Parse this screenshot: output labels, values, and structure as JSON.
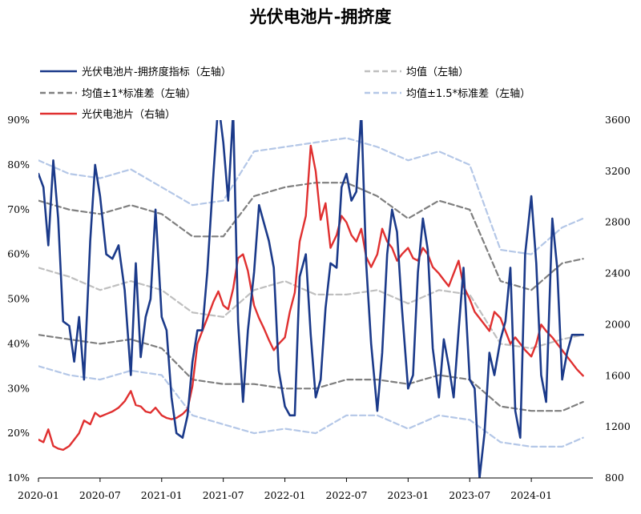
{
  "chart_data": {
    "type": "line",
    "title": "光伏电池片-拥挤度",
    "left_axis": {
      "ylim": [
        10,
        90
      ],
      "ticks": [
        10,
        20,
        30,
        40,
        50,
        60,
        70,
        80,
        90
      ],
      "tick_labels": [
        "10%",
        "20%",
        "30%",
        "40%",
        "50%",
        "60%",
        "70%",
        "80%",
        "90%"
      ]
    },
    "right_axis": {
      "ylim": [
        800,
        3600
      ],
      "ticks": [
        800,
        1200,
        1600,
        2000,
        2400,
        2800,
        3200,
        3600
      ],
      "tick_labels": [
        "800",
        "1200",
        "1600",
        "2000",
        "2400",
        "2800",
        "3200",
        "3600"
      ]
    },
    "x_axis": {
      "range": [
        "2020-01",
        "2024-06"
      ],
      "tick_labels": [
        "2020-01",
        "2020-07",
        "2021-01",
        "2021-07",
        "2022-01",
        "2022-07",
        "2023-01",
        "2023-07",
        "2024-01"
      ]
    },
    "legend": [
      {
        "label": "光伏电池片-拥挤度指标（左轴）",
        "color": "#1b3a8a",
        "dash": "solid"
      },
      {
        "label": "均值（左轴）",
        "color": "#bfbfbf",
        "dash": "dashed"
      },
      {
        "label": "均值±1*标准差（左轴）",
        "color": "#7f7f7f",
        "dash": "dashed"
      },
      {
        "label": "均值±1.5*标准差（左轴）",
        "color": "#b4c7e7",
        "dash": "dashed"
      },
      {
        "label": "光伏电池片（右轴）",
        "color": "#e03030",
        "dash": "solid"
      }
    ],
    "legend_placement": "top",
    "grid": false,
    "series": [
      {
        "name": "光伏电池片-拥挤度指标（左轴）",
        "axis": "left",
        "color": "#1b3a8a",
        "x": [
          2020.0,
          2020.04,
          2020.08,
          2020.12,
          2020.16,
          2020.2,
          2020.25,
          2020.29,
          2020.33,
          2020.37,
          2020.42,
          2020.46,
          2020.5,
          2020.55,
          2020.6,
          2020.65,
          2020.7,
          2020.75,
          2020.79,
          2020.83,
          2020.87,
          2020.91,
          2020.95,
          2021.0,
          2021.04,
          2021.08,
          2021.12,
          2021.17,
          2021.21,
          2021.25,
          2021.29,
          2021.33,
          2021.37,
          2021.42,
          2021.46,
          2021.5,
          2021.54,
          2021.58,
          2021.62,
          2021.66,
          2021.7,
          2021.75,
          2021.79,
          2021.83,
          2021.87,
          2021.91,
          2021.95,
          2022.0,
          2022.04,
          2022.08,
          2022.12,
          2022.17,
          2022.21,
          2022.25,
          2022.29,
          2022.33,
          2022.37,
          2022.42,
          2022.46,
          2022.5,
          2022.54,
          2022.58,
          2022.62,
          2022.66,
          2022.7,
          2022.75,
          2022.79,
          2022.83,
          2022.87,
          2022.91,
          2022.95,
          2023.0,
          2023.04,
          2023.08,
          2023.12,
          2023.16,
          2023.2,
          2023.25,
          2023.29,
          2023.33,
          2023.37,
          2023.41,
          2023.45,
          2023.5,
          2023.54,
          2023.58,
          2023.62,
          2023.66,
          2023.7,
          2023.75,
          2023.79,
          2023.83,
          2023.87,
          2023.91,
          2023.95,
          2024.0,
          2024.04,
          2024.08,
          2024.12,
          2024.17,
          2024.21,
          2024.25,
          2024.29,
          2024.33,
          2024.37,
          2024.42
        ],
        "values": [
          78,
          75,
          62,
          81,
          68,
          45,
          44,
          36,
          46,
          32,
          63,
          80,
          73,
          60,
          59,
          62,
          52,
          33,
          58,
          37,
          46,
          50,
          70,
          46,
          43,
          28,
          20,
          19,
          24,
          36,
          43,
          43,
          56,
          78,
          94,
          85,
          72,
          92,
          45,
          27,
          43,
          56,
          71,
          67,
          63,
          57,
          34,
          26,
          24,
          24,
          55,
          60,
          42,
          28,
          32,
          48,
          58,
          57,
          75,
          78,
          72,
          74,
          92,
          58,
          40,
          25,
          38,
          60,
          70,
          65,
          48,
          30,
          33,
          56,
          68,
          61,
          39,
          28,
          41,
          35,
          28,
          43,
          57,
          32,
          30,
          10,
          20,
          38,
          33,
          41,
          45,
          57,
          25,
          19,
          60,
          73,
          58,
          33,
          27,
          68,
          57,
          32,
          38,
          42,
          42,
          42
        ]
      },
      {
        "name": "光伏电池片（右轴）",
        "axis": "right",
        "color": "#e03030",
        "x": [
          2020.0,
          2020.04,
          2020.08,
          2020.12,
          2020.16,
          2020.2,
          2020.25,
          2020.29,
          2020.33,
          2020.37,
          2020.42,
          2020.46,
          2020.5,
          2020.55,
          2020.6,
          2020.65,
          2020.7,
          2020.75,
          2020.79,
          2020.83,
          2020.87,
          2020.91,
          2020.95,
          2021.0,
          2021.04,
          2021.08,
          2021.12,
          2021.17,
          2021.21,
          2021.25,
          2021.29,
          2021.33,
          2021.37,
          2021.42,
          2021.46,
          2021.5,
          2021.54,
          2021.58,
          2021.62,
          2021.66,
          2021.7,
          2021.75,
          2021.79,
          2021.83,
          2021.87,
          2021.91,
          2021.95,
          2022.0,
          2022.04,
          2022.08,
          2022.12,
          2022.17,
          2022.21,
          2022.25,
          2022.29,
          2022.33,
          2022.37,
          2022.42,
          2022.46,
          2022.5,
          2022.54,
          2022.58,
          2022.62,
          2022.66,
          2022.7,
          2022.75,
          2022.79,
          2022.83,
          2022.87,
          2022.91,
          2022.95,
          2023.0,
          2023.04,
          2023.08,
          2023.12,
          2023.16,
          2023.2,
          2023.25,
          2023.29,
          2023.33,
          2023.37,
          2023.41,
          2023.45,
          2023.5,
          2023.54,
          2023.58,
          2023.62,
          2023.66,
          2023.7,
          2023.75,
          2023.79,
          2023.83,
          2023.87,
          2023.91,
          2023.95,
          2024.0,
          2024.04,
          2024.08,
          2024.12,
          2024.17,
          2024.21,
          2024.25,
          2024.29,
          2024.33,
          2024.37,
          2024.42
        ],
        "values": [
          1100,
          1080,
          1180,
          1050,
          1030,
          1020,
          1050,
          1100,
          1150,
          1250,
          1220,
          1310,
          1280,
          1300,
          1320,
          1350,
          1400,
          1480,
          1370,
          1360,
          1320,
          1310,
          1350,
          1290,
          1270,
          1260,
          1270,
          1300,
          1340,
          1520,
          1850,
          1950,
          2050,
          2180,
          2260,
          2150,
          2120,
          2280,
          2520,
          2550,
          2420,
          2150,
          2050,
          1970,
          1880,
          1800,
          1850,
          1900,
          2100,
          2250,
          2650,
          2850,
          3400,
          3200,
          2820,
          2950,
          2600,
          2700,
          2850,
          2800,
          2700,
          2650,
          2750,
          2530,
          2450,
          2550,
          2750,
          2650,
          2600,
          2500,
          2550,
          2600,
          2520,
          2500,
          2600,
          2550,
          2450,
          2400,
          2350,
          2300,
          2400,
          2500,
          2300,
          2200,
          2100,
          2050,
          2000,
          1950,
          2100,
          2050,
          1950,
          1850,
          1900,
          1850,
          1800,
          1750,
          1850,
          2000,
          1950,
          1900,
          1850,
          1800,
          1750,
          1700,
          1650,
          1600
        ]
      },
      {
        "name": "均值（左轴）",
        "axis": "left",
        "color": "#bfbfbf",
        "x": [
          2020.0,
          2020.25,
          2020.5,
          2020.75,
          2021.0,
          2021.25,
          2021.5,
          2021.75,
          2022.0,
          2022.25,
          2022.5,
          2022.75,
          2023.0,
          2023.25,
          2023.5,
          2023.75,
          2024.0,
          2024.25,
          2024.42
        ],
        "values": [
          57,
          55,
          52,
          54,
          52,
          47,
          46,
          52,
          54,
          51,
          51,
          52,
          49,
          52,
          51,
          40,
          39,
          41,
          42
        ]
      },
      {
        "name": "均值±1*标准差（左轴）",
        "axis": "left",
        "color": "#7f7f7f",
        "x": [
          2020.0,
          2020.25,
          2020.5,
          2020.75,
          2021.0,
          2021.25,
          2021.5,
          2021.75,
          2022.0,
          2022.25,
          2022.5,
          2022.75,
          2023.0,
          2023.25,
          2023.5,
          2023.75,
          2024.0,
          2024.25,
          2024.42
        ],
        "values": [
          72,
          70,
          69,
          71,
          69,
          64,
          64,
          73,
          75,
          76,
          76,
          73,
          68,
          72,
          70,
          54,
          52,
          58,
          59
        ]
      },
      {
        "name": "均值±1*标准差（左轴）",
        "axis": "left",
        "color": "#7f7f7f",
        "x": [
          2020.0,
          2020.25,
          2020.5,
          2020.75,
          2021.0,
          2021.25,
          2021.5,
          2021.75,
          2022.0,
          2022.25,
          2022.5,
          2022.75,
          2023.0,
          2023.25,
          2023.5,
          2023.75,
          2024.0,
          2024.25,
          2024.42
        ],
        "values": [
          42,
          41,
          40,
          41,
          39,
          32,
          31,
          31,
          30,
          30,
          32,
          32,
          31,
          33,
          32,
          26,
          25,
          25,
          27
        ]
      },
      {
        "name": "均值±1.5*标准差（左轴）",
        "axis": "left",
        "color": "#b4c7e7",
        "x": [
          2020.0,
          2020.25,
          2020.5,
          2020.75,
          2021.0,
          2021.25,
          2021.5,
          2021.75,
          2022.0,
          2022.25,
          2022.5,
          2022.75,
          2023.0,
          2023.25,
          2023.5,
          2023.75,
          2024.0,
          2024.25,
          2024.42
        ],
        "values": [
          81,
          78,
          77,
          79,
          75,
          71,
          72,
          83,
          84,
          85,
          86,
          84,
          81,
          83,
          80,
          61,
          60,
          66,
          68
        ]
      },
      {
        "name": "均值±1.5*标准差（左轴）",
        "axis": "left",
        "color": "#b4c7e7",
        "x": [
          2020.0,
          2020.25,
          2020.5,
          2020.75,
          2021.0,
          2021.25,
          2021.5,
          2021.75,
          2022.0,
          2022.25,
          2022.5,
          2022.75,
          2023.0,
          2023.25,
          2023.5,
          2023.75,
          2024.0,
          2024.25,
          2024.42
        ],
        "values": [
          35,
          33,
          32,
          34,
          33,
          24,
          22,
          20,
          21,
          20,
          24,
          24,
          21,
          24,
          23,
          18,
          17,
          17,
          19
        ]
      }
    ]
  }
}
